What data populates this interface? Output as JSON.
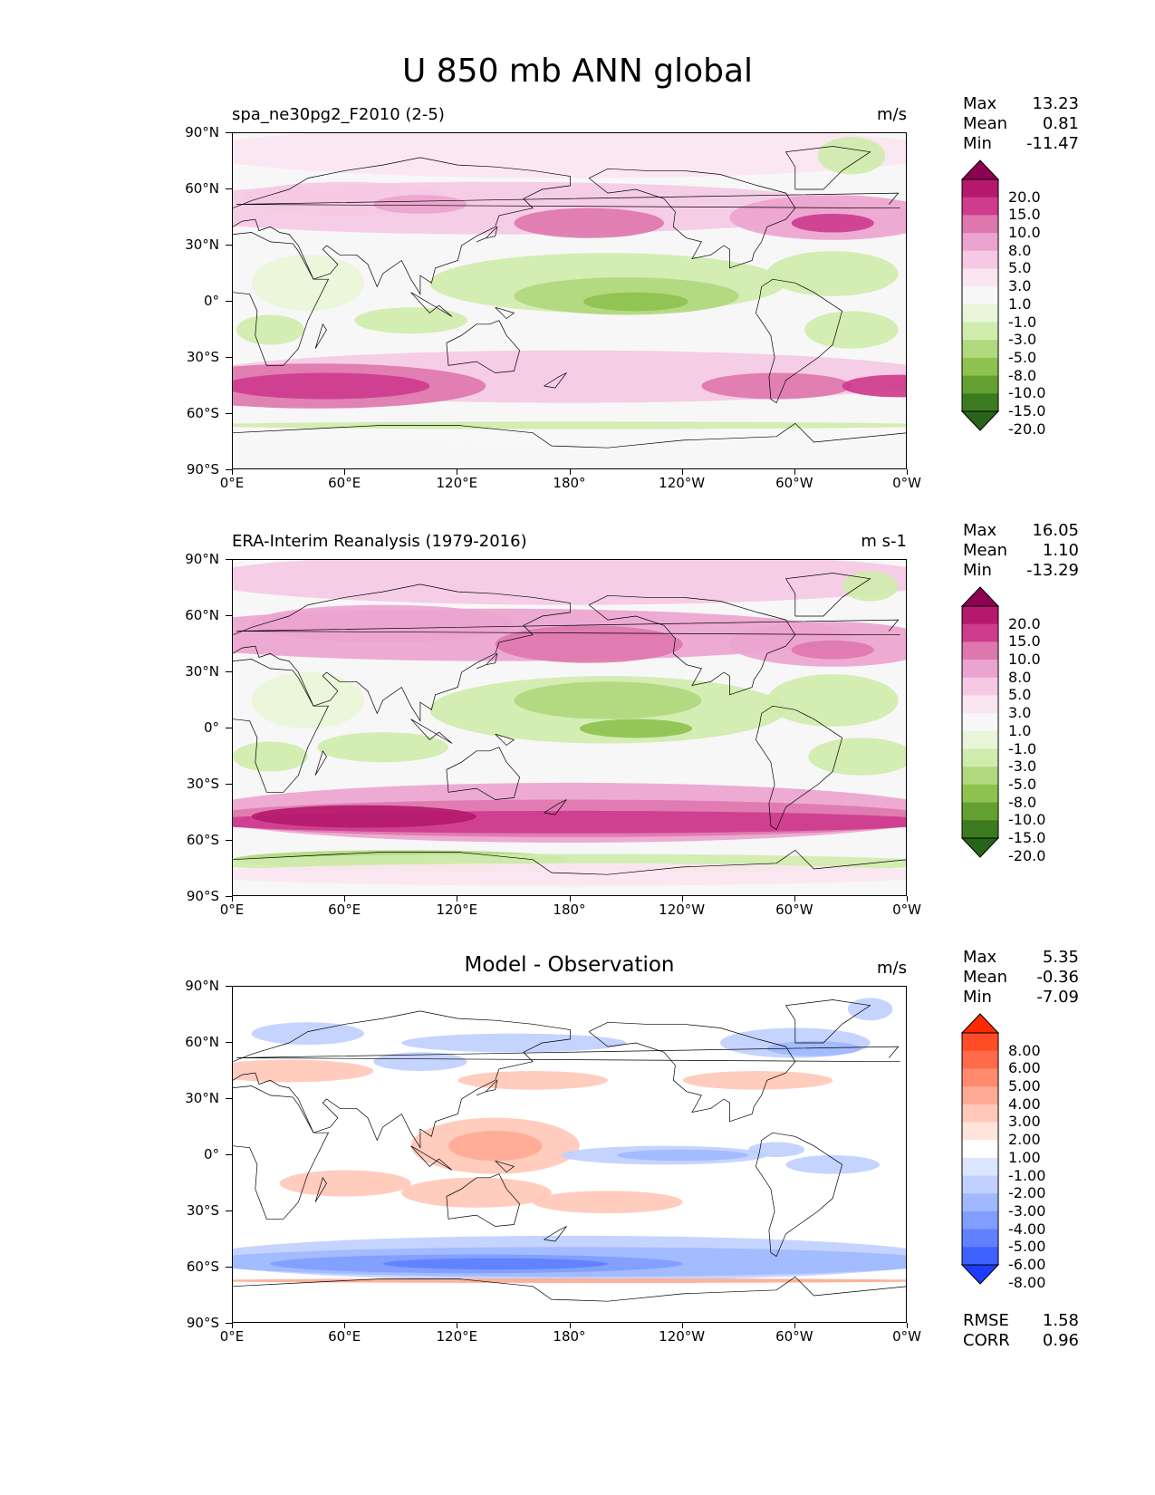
{
  "title": "U 850 mb ANN global",
  "axes": {
    "lat_ticks": [
      "90°N",
      "60°N",
      "30°N",
      "0°",
      "30°S",
      "60°S",
      "90°S"
    ],
    "lon_ticks": [
      "0°E",
      "60°E",
      "120°E",
      "180°",
      "120°W",
      "60°W",
      "0°W"
    ]
  },
  "panels": [
    {
      "title": "spa_ne30pg2_F2010 (2-5)",
      "units": "m/s",
      "stats": [
        {
          "label": "Max",
          "value": "13.23"
        },
        {
          "label": "Mean",
          "value": "0.81"
        },
        {
          "label": "Min",
          "value": "-11.47"
        }
      ],
      "colorbar": {
        "labels": [
          "20.0",
          "15.0",
          "10.0",
          "8.0",
          "5.0",
          "3.0",
          "1.0",
          "-1.0",
          "-3.0",
          "-5.0",
          "-8.0",
          "-10.0",
          "-15.0",
          "-20.0"
        ],
        "colors": [
          "#8e0152",
          "#b5196e",
          "#cd3c8d",
          "#de77ae",
          "#eba4cf",
          "#f5c9e4",
          "#fbe5f1",
          "#f7f7f7",
          "#e9f5d8",
          "#cfecad",
          "#b0d87d",
          "#8ec24f",
          "#64a031",
          "#3c7b1f",
          "#276419"
        ]
      }
    },
    {
      "title": "ERA-Interim Reanalysis (1979-2016)",
      "units": "m s-1",
      "stats": [
        {
          "label": "Max",
          "value": "16.05"
        },
        {
          "label": "Mean",
          "value": "1.10"
        },
        {
          "label": "Min",
          "value": "-13.29"
        }
      ],
      "colorbar": {
        "labels": [
          "20.0",
          "15.0",
          "10.0",
          "8.0",
          "5.0",
          "3.0",
          "1.0",
          "-1.0",
          "-3.0",
          "-5.0",
          "-8.0",
          "-10.0",
          "-15.0",
          "-20.0"
        ],
        "colors": [
          "#8e0152",
          "#b5196e",
          "#cd3c8d",
          "#de77ae",
          "#eba4cf",
          "#f5c9e4",
          "#fbe5f1",
          "#f7f7f7",
          "#e9f5d8",
          "#cfecad",
          "#b0d87d",
          "#8ec24f",
          "#64a031",
          "#3c7b1f",
          "#276419"
        ]
      }
    },
    {
      "title": "Model - Observation",
      "units": "m/s",
      "stats": [
        {
          "label": "Max",
          "value": "5.35"
        },
        {
          "label": "Mean",
          "value": "-0.36"
        },
        {
          "label": "Min",
          "value": "-7.09"
        }
      ],
      "extra_stats": [
        {
          "label": "RMSE",
          "value": "1.58"
        },
        {
          "label": "CORR",
          "value": "0.96"
        }
      ],
      "colorbar": {
        "labels": [
          "8.00",
          "6.00",
          "5.00",
          "4.00",
          "3.00",
          "2.00",
          "1.00",
          "-1.00",
          "-2.00",
          "-3.00",
          "-4.00",
          "-5.00",
          "-6.00",
          "-8.00"
        ],
        "colors": [
          "#ff2a00",
          "#ff4c26",
          "#ff6a4a",
          "#ff8a6e",
          "#ffaa94",
          "#ffc8b8",
          "#ffe4dc",
          "#ffffff",
          "#dde6ff",
          "#c0d0ff",
          "#a0b8ff",
          "#809dff",
          "#6080ff",
          "#3e62ff",
          "#1e3cff"
        ]
      }
    }
  ]
}
